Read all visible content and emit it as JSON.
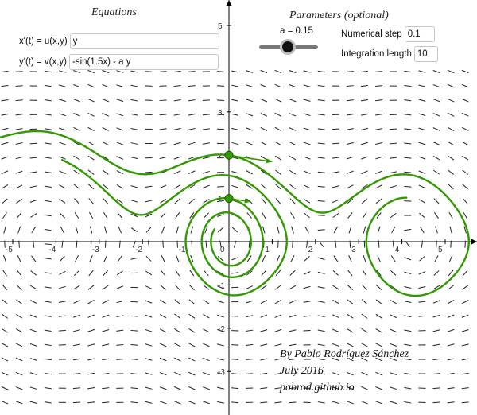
{
  "equations": {
    "title": "Equations",
    "x_label": "x'(t) = u(x,y)",
    "x_value": "y",
    "y_label": "y'(t) = v(x,y)",
    "y_value": "-sin(1.5x) - a y"
  },
  "parameters": {
    "title": "Parameters (optional)",
    "a_label": "a = 0.15",
    "a_value": 0.15,
    "step_label": "Numerical step",
    "step_value": "0.1",
    "length_label": "Integration length",
    "length_value": "10"
  },
  "credits": {
    "author": "By Pablo Rodríguez Sánchez",
    "date": "July 2016",
    "site": "pabrod.github.io"
  },
  "graph": {
    "x_ticks": [
      "-5",
      "-4",
      "-3",
      "-2",
      "-1",
      "0",
      "1",
      "2",
      "3",
      "4",
      "5"
    ],
    "y_ticks": [
      "5",
      "3",
      "2",
      "1",
      "-1",
      "-2",
      "-3"
    ],
    "origin_label": "0",
    "colors": {
      "trajectory": "#339900",
      "axis": "#000000",
      "field": "#222222",
      "point": "#339900",
      "point_stroke": "#1a5500"
    },
    "start_points": [
      {
        "x": 0,
        "y": 2
      },
      {
        "x": 0,
        "y": 1
      }
    ]
  }
}
